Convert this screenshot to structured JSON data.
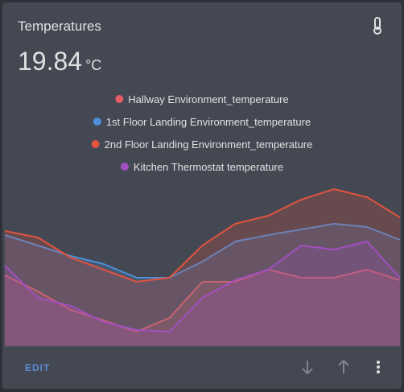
{
  "header": {
    "title": "Temperatures",
    "state": "19.84",
    "unit": "°C"
  },
  "chart_data": {
    "type": "area",
    "ylim": [
      16,
      22
    ],
    "series": [
      {
        "name": "Hallway Environment_temperature",
        "color": "#e45e65",
        "values": [
          18.64,
          18.04,
          17.35,
          16.96,
          16.54,
          17.05,
          18.4,
          18.4,
          18.85,
          18.55,
          18.55,
          18.85,
          18.46
        ]
      },
      {
        "name": "1st Floor Landing Environment_temperature",
        "color": "#4e8fd9",
        "values": [
          20.14,
          19.75,
          19.36,
          19.06,
          18.55,
          18.55,
          19.15,
          19.9,
          20.14,
          20.35,
          20.56,
          20.44,
          19.96
        ]
      },
      {
        "name": "2nd Floor Landing Environment_temperature",
        "color": "#e0533f",
        "values": [
          20.29,
          20.05,
          19.3,
          18.85,
          18.4,
          18.55,
          19.75,
          20.56,
          20.86,
          21.46,
          21.85,
          21.55,
          20.8
        ]
      },
      {
        "name": "Kitchen Thermostat temperature",
        "color": "#a14fc0",
        "values": [
          19,
          17.8,
          17.5,
          16.9,
          16.6,
          16.54,
          17.8,
          18.46,
          18.85,
          19.75,
          19.6,
          19.9,
          18.55
        ]
      }
    ]
  },
  "footer": {
    "edit": "EDIT"
  }
}
